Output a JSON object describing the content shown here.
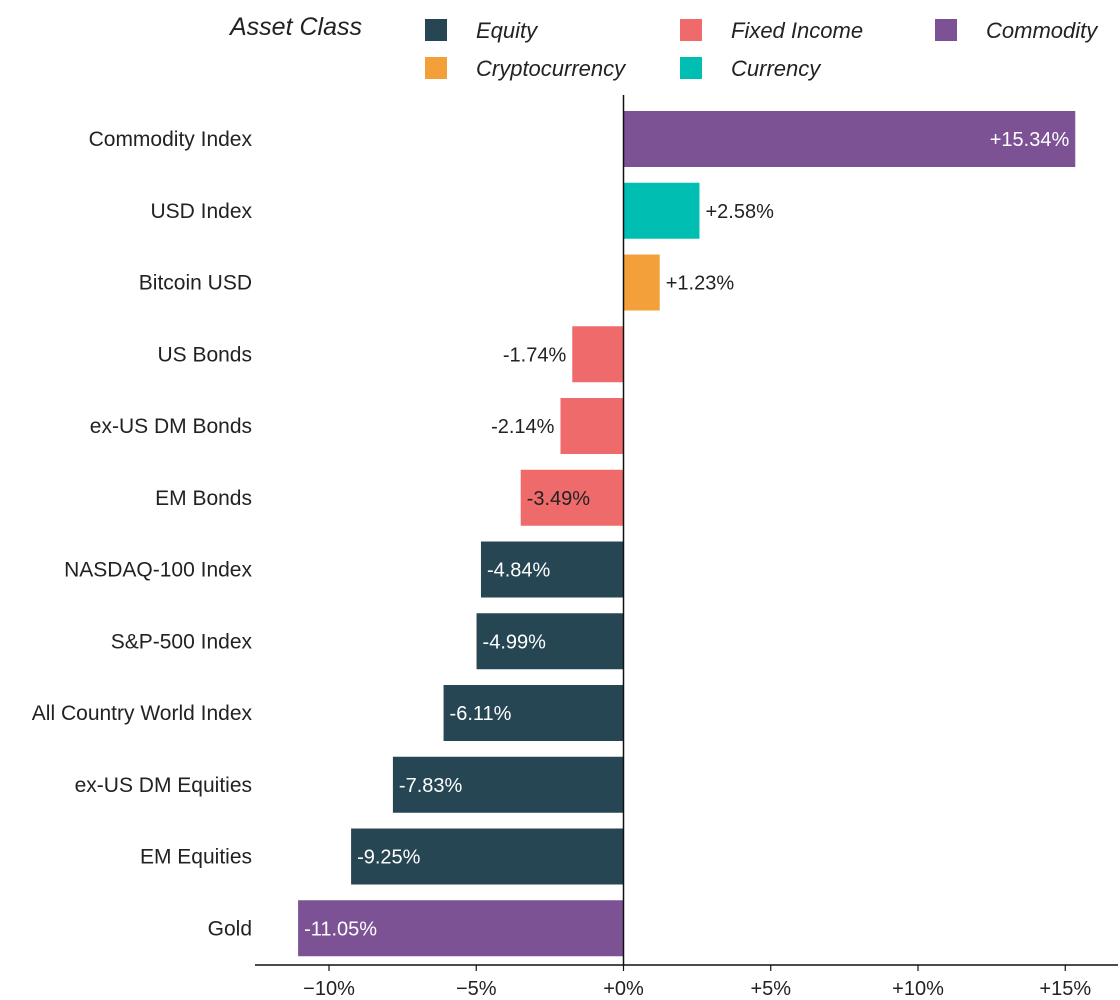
{
  "chart_data": {
    "type": "bar",
    "orientation": "horizontal",
    "title": "",
    "xlabel": "",
    "ylabel": "",
    "xlim": [
      -12.1,
      16.5
    ],
    "grid": false,
    "legend": {
      "title": "Asset Class",
      "placement": "top",
      "entries": [
        {
          "name": "Equity",
          "color": "#264653"
        },
        {
          "name": "Fixed Income",
          "color": "#ef6b6b"
        },
        {
          "name": "Commodity",
          "color": "#7c5295"
        },
        {
          "name": "Cryptocurrency",
          "color": "#f4a03a"
        },
        {
          "name": "Currency",
          "color": "#00bfb2"
        }
      ]
    },
    "x_ticks": [
      {
        "value": -10,
        "label": "−10%"
      },
      {
        "value": -5,
        "label": "−5%"
      },
      {
        "value": 0,
        "label": "+0%"
      },
      {
        "value": 5,
        "label": "+5%"
      },
      {
        "value": 10,
        "label": "+10%"
      },
      {
        "value": 15,
        "label": "+15%"
      }
    ],
    "bars": [
      {
        "category": "Commodity Index",
        "value": 15.34,
        "label": "+15.34%",
        "asset_class": "Commodity"
      },
      {
        "category": "USD Index",
        "value": 2.58,
        "label": "+2.58%",
        "asset_class": "Currency"
      },
      {
        "category": "Bitcoin USD",
        "value": 1.23,
        "label": "+1.23%",
        "asset_class": "Cryptocurrency"
      },
      {
        "category": "US Bonds",
        "value": -1.74,
        "label": "-1.74%",
        "asset_class": "Fixed Income"
      },
      {
        "category": "ex-US DM Bonds",
        "value": -2.14,
        "label": "-2.14%",
        "asset_class": "Fixed Income"
      },
      {
        "category": "EM Bonds",
        "value": -3.49,
        "label": "-3.49%",
        "asset_class": "Fixed Income"
      },
      {
        "category": "NASDAQ-100 Index",
        "value": -4.84,
        "label": "-4.84%",
        "asset_class": "Equity"
      },
      {
        "category": "S&P-500 Index ",
        "value": -4.99,
        "label": "-4.99%",
        "asset_class": "Equity"
      },
      {
        "category": "All Country World Index",
        "value": -6.11,
        "label": "-6.11%",
        "asset_class": "Equity"
      },
      {
        "category": "ex-US DM Equities",
        "value": -7.83,
        "label": "-7.83%",
        "asset_class": "Equity"
      },
      {
        "category": "EM Equities",
        "value": -9.25,
        "label": "-9.25%",
        "asset_class": "Equity"
      },
      {
        "category": "Gold",
        "value": -11.05,
        "label": "-11.05%",
        "asset_class": "Commodity"
      }
    ]
  }
}
